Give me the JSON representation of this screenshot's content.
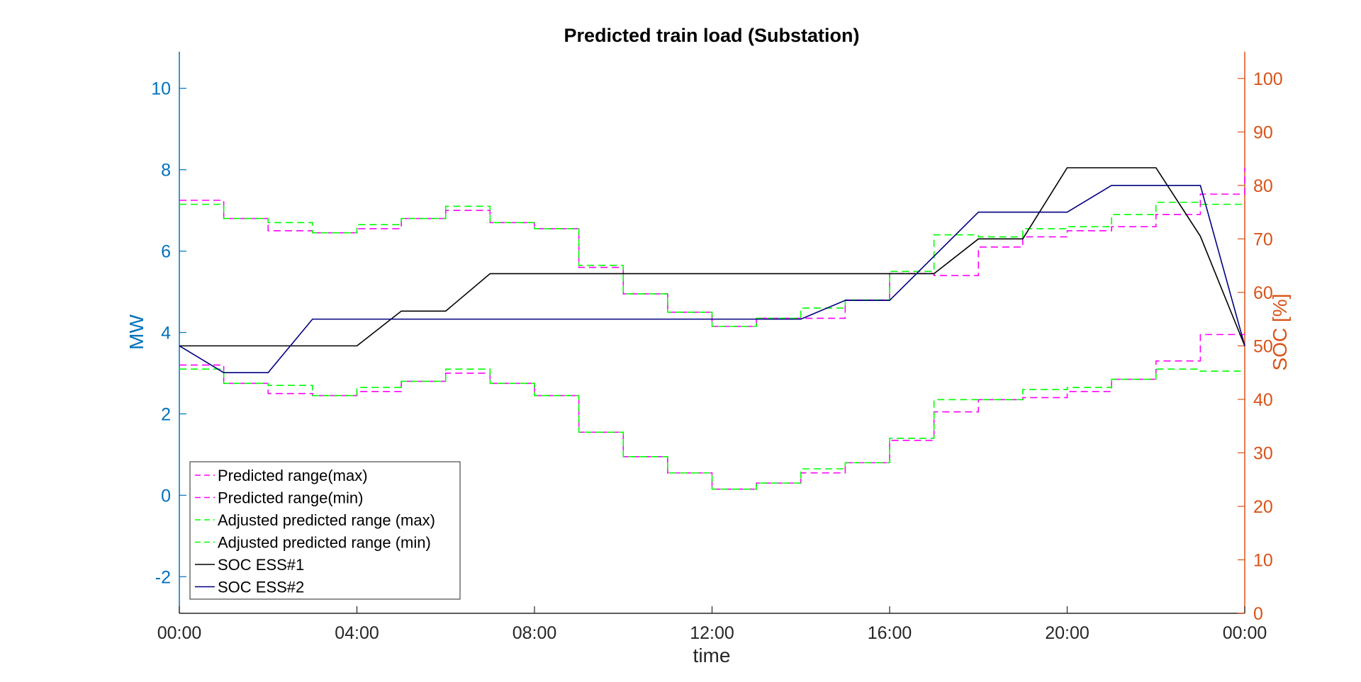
{
  "chart_data": {
    "type": "line",
    "title": "Predicted train load (Substation)",
    "xlabel": "time",
    "ylabel_left": "MW",
    "ylabel_right": "SOC [%]",
    "x_unit": "hours",
    "xlim": [
      0,
      24
    ],
    "ylim_left": [
      -2.9,
      10.9
    ],
    "ylim_right": [
      0,
      105
    ],
    "x_ticks": [
      0,
      4,
      8,
      12,
      16,
      20,
      24
    ],
    "x_tick_labels": [
      "00:00",
      "04:00",
      "08:00",
      "12:00",
      "16:00",
      "20:00",
      "00:00"
    ],
    "y_ticks_left": [
      -2,
      0,
      2,
      4,
      6,
      8,
      10
    ],
    "y_ticks_right": [
      0,
      10,
      20,
      30,
      40,
      50,
      60,
      70,
      80,
      90,
      100
    ],
    "grid": false,
    "legend_position": "bottom-left",
    "colors": {
      "left_axis": "#0072BD",
      "right_axis": "#D95319",
      "magenta": "#FF00FF",
      "green": "#00FF00",
      "black": "#000000",
      "navy": "#000080"
    },
    "step_hours": [
      0,
      1,
      2,
      3,
      4,
      5,
      6,
      7,
      8,
      9,
      10,
      11,
      12,
      13,
      14,
      15,
      16,
      17,
      18,
      19,
      20,
      21,
      22,
      23,
      24
    ],
    "series": [
      {
        "name": "Predicted range(max)",
        "axis": "left",
        "style": "step-dashed",
        "color": "#FF00FF",
        "values": [
          7.25,
          6.8,
          6.5,
          6.45,
          6.55,
          6.8,
          7.0,
          6.7,
          6.55,
          5.6,
          4.95,
          4.5,
          4.15,
          4.35,
          4.35,
          4.8,
          5.45,
          5.4,
          6.1,
          6.35,
          6.5,
          6.6,
          6.9,
          7.4,
          8.05
        ]
      },
      {
        "name": "Predicted range(min)",
        "axis": "left",
        "style": "step-dashed",
        "color": "#FF00FF",
        "values": [
          3.2,
          2.75,
          2.5,
          2.45,
          2.55,
          2.8,
          3.0,
          2.75,
          2.45,
          1.55,
          0.95,
          0.55,
          0.15,
          0.3,
          0.55,
          0.8,
          1.35,
          2.05,
          2.35,
          2.4,
          2.55,
          2.85,
          3.3,
          3.95,
          3.95
        ]
      },
      {
        "name": "Adjusted predicted range (max)",
        "axis": "left",
        "style": "step-dashed",
        "color": "#00FF00",
        "values": [
          7.15,
          6.8,
          6.7,
          6.45,
          6.65,
          6.8,
          7.1,
          6.7,
          6.55,
          5.65,
          4.95,
          4.5,
          4.15,
          4.35,
          4.6,
          4.8,
          5.5,
          6.4,
          6.35,
          6.55,
          6.6,
          6.9,
          7.2,
          7.15,
          7.15
        ]
      },
      {
        "name": "Adjusted predicted range (min)",
        "axis": "left",
        "style": "step-dashed",
        "color": "#00FF00",
        "values": [
          3.1,
          2.75,
          2.7,
          2.45,
          2.65,
          2.8,
          3.1,
          2.75,
          2.45,
          1.55,
          0.95,
          0.55,
          0.15,
          0.3,
          0.65,
          0.8,
          1.4,
          2.35,
          2.35,
          2.6,
          2.65,
          2.85,
          3.1,
          3.05,
          3.05
        ]
      },
      {
        "name": "SOC ESS#1",
        "axis": "right",
        "style": "solid",
        "color": "#000000",
        "x": [
          0,
          1,
          4,
          5,
          6,
          7,
          16,
          17,
          18,
          19,
          20,
          22,
          23,
          24
        ],
        "values": [
          50,
          50,
          50,
          56.5,
          56.5,
          63.5,
          63.5,
          63.5,
          70,
          70,
          83.3,
          83.3,
          70.5,
          50
        ]
      },
      {
        "name": "SOC ESS#2",
        "axis": "right",
        "style": "solid",
        "color": "#000080",
        "x": [
          0,
          1,
          2,
          3,
          14,
          15,
          16,
          18,
          20,
          21,
          23,
          24
        ],
        "values": [
          50,
          45,
          45,
          55,
          55,
          58.5,
          58.5,
          75,
          75,
          80,
          80,
          50
        ]
      }
    ]
  }
}
